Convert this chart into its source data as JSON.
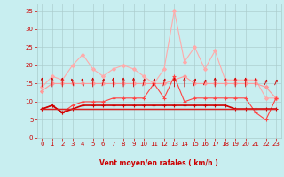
{
  "x": [
    0,
    1,
    2,
    3,
    4,
    5,
    6,
    7,
    8,
    9,
    10,
    11,
    12,
    13,
    14,
    15,
    16,
    17,
    18,
    19,
    20,
    21,
    22,
    23
  ],
  "series": [
    {
      "name": "rafales_max",
      "color": "#ffaaaa",
      "linewidth": 0.8,
      "marker": "D",
      "markersize": 2.0,
      "values": [
        14,
        17,
        16,
        20,
        23,
        19,
        17,
        19,
        20,
        19,
        17,
        15,
        19,
        35,
        21,
        25,
        19,
        24,
        16,
        16,
        16,
        16,
        11,
        11
      ]
    },
    {
      "name": "rafales_mean",
      "color": "#ff9999",
      "linewidth": 0.8,
      "marker": "D",
      "markersize": 2.0,
      "values": [
        13,
        15,
        15,
        15,
        15,
        15,
        15,
        15,
        15,
        15,
        15,
        15,
        15,
        16,
        17,
        15,
        15,
        15,
        15,
        15,
        15,
        15,
        14,
        11
      ]
    },
    {
      "name": "vent_max",
      "color": "#ff4444",
      "linewidth": 0.8,
      "marker": "+",
      "markersize": 3.5,
      "values": [
        8,
        9,
        7,
        9,
        10,
        10,
        10,
        11,
        11,
        11,
        11,
        15,
        11,
        17,
        10,
        11,
        11,
        11,
        11,
        11,
        11,
        7,
        5,
        11
      ]
    },
    {
      "name": "vent_mean",
      "color": "#cc0000",
      "linewidth": 1.2,
      "marker": "+",
      "markersize": 3.5,
      "values": [
        8,
        9,
        7,
        8,
        9,
        9,
        9,
        9,
        9,
        9,
        9,
        9,
        9,
        9,
        9,
        9,
        9,
        9,
        9,
        8,
        8,
        8,
        8,
        8
      ]
    },
    {
      "name": "vent_flat1",
      "color": "#cc0000",
      "linewidth": 1.0,
      "marker": null,
      "markersize": 0,
      "values": [
        8,
        8,
        8,
        8,
        8,
        8,
        8,
        8,
        8,
        8,
        8,
        8,
        8,
        8,
        8,
        8,
        8,
        8,
        8,
        8,
        8,
        8,
        8,
        8
      ]
    },
    {
      "name": "vent_flat2",
      "color": "#dd2222",
      "linewidth": 0.8,
      "marker": null,
      "markersize": 0,
      "values": [
        8,
        8,
        8,
        8,
        8,
        8,
        8,
        8,
        8,
        8,
        8,
        8,
        8,
        8,
        8,
        8,
        8,
        8,
        8,
        8,
        8,
        8,
        8,
        8
      ]
    }
  ],
  "xlabel": "Vent moyen/en rafales ( km/h )",
  "xlim": [
    -0.5,
    23.5
  ],
  "ylim": [
    0,
    37
  ],
  "yticks": [
    0,
    5,
    10,
    15,
    20,
    25,
    30,
    35
  ],
  "xticks": [
    0,
    1,
    2,
    3,
    4,
    5,
    6,
    7,
    8,
    9,
    10,
    11,
    12,
    13,
    14,
    15,
    16,
    17,
    18,
    19,
    20,
    21,
    22,
    23
  ],
  "bg_color": "#c8eef0",
  "grid_color": "#aacccc",
  "text_color": "#cc0000",
  "arrow_color": "#cc0000"
}
